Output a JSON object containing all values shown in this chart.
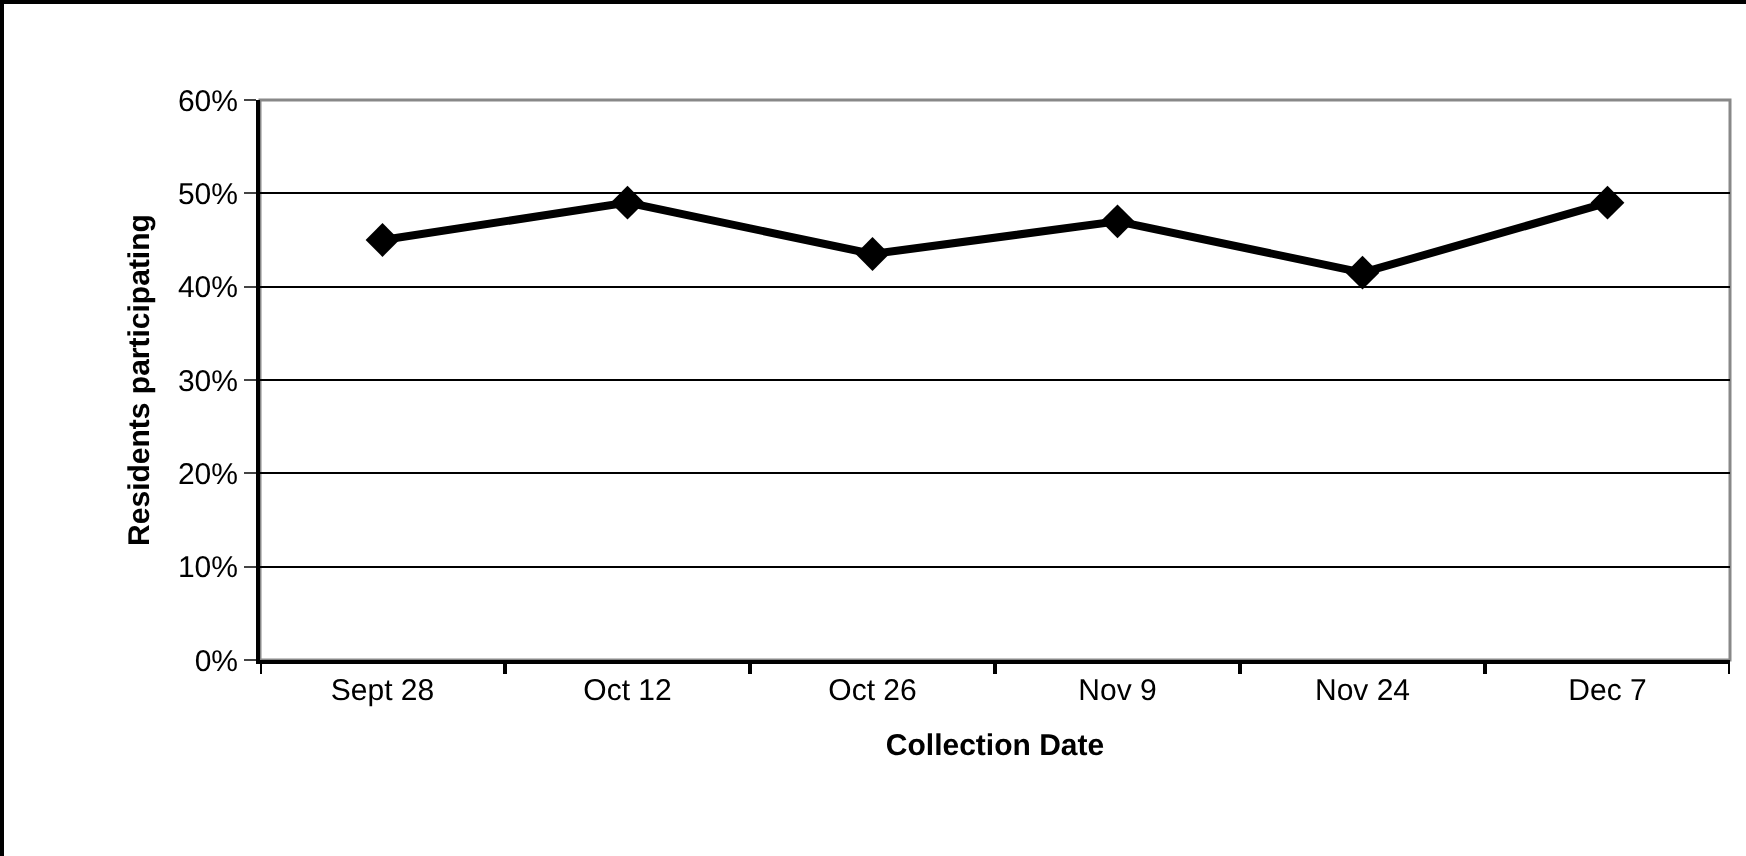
{
  "chart_data": {
    "type": "line",
    "xlabel": "Collection Date",
    "ylabel": "Residents participating",
    "categories": [
      "Sept 28",
      "Oct 12",
      "Oct 26",
      "Nov 9",
      "Nov 24",
      "Dec 7"
    ],
    "series": [
      {
        "color": "#000000",
        "values": [
          45,
          49,
          43.5,
          47,
          41.5,
          49
        ]
      }
    ],
    "ylim": [
      0,
      60
    ],
    "yticks": [
      {
        "value": 0,
        "label": "0%"
      },
      {
        "value": 10,
        "label": "10%"
      },
      {
        "value": 20,
        "label": "20%"
      },
      {
        "value": 30,
        "label": "30%"
      },
      {
        "value": 40,
        "label": "40%"
      },
      {
        "value": 50,
        "label": "50%"
      },
      {
        "value": 60,
        "label": "60%"
      }
    ],
    "grid": "y",
    "marker": "diamond",
    "line_style": "solid",
    "legend": false
  }
}
